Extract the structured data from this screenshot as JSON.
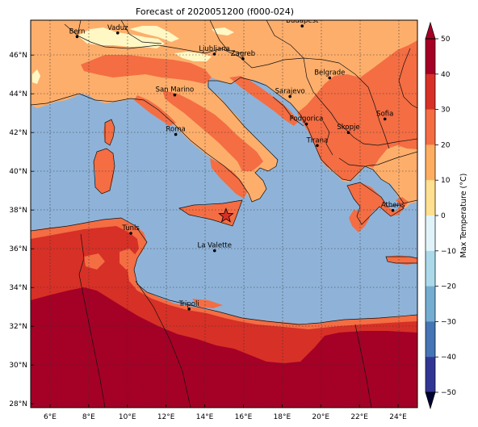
{
  "map": {
    "title": "Forecast of 2020051200 (f000-024)",
    "x_ticks": [
      "6°E",
      "8°E",
      "10°E",
      "12°E",
      "14°E",
      "16°E",
      "18°E",
      "20°E",
      "22°E",
      "24°E"
    ],
    "y_ticks": [
      "46°N",
      "44°N",
      "42°N",
      "40°N",
      "38°N",
      "36°N",
      "34°N",
      "32°N",
      "30°N",
      "28°N"
    ],
    "cities": [
      {
        "name": "Bern",
        "lon": 7.4,
        "lat": 46.95
      },
      {
        "name": "Vaduz",
        "lon": 9.5,
        "lat": 47.14
      },
      {
        "name": "Budapest",
        "lon": 19.04,
        "lat": 47.5
      },
      {
        "name": "Ljubljana",
        "lon": 14.5,
        "lat": 46.05
      },
      {
        "name": "Zagreb",
        "lon": 15.98,
        "lat": 45.81
      },
      {
        "name": "Belgrade",
        "lon": 20.46,
        "lat": 44.82
      },
      {
        "name": "San Marino",
        "lon": 12.45,
        "lat": 43.94
      },
      {
        "name": "Sarajevo",
        "lon": 18.41,
        "lat": 43.86
      },
      {
        "name": "Sofia",
        "lon": 23.32,
        "lat": 42.7
      },
      {
        "name": "Podgorica",
        "lon": 19.26,
        "lat": 42.44
      },
      {
        "name": "Skopje",
        "lon": 21.43,
        "lat": 42.0
      },
      {
        "name": "Roma",
        "lon": 12.5,
        "lat": 41.9
      },
      {
        "name": "Tirana",
        "lon": 19.82,
        "lat": 41.33
      },
      {
        "name": "Athens",
        "lon": 23.73,
        "lat": 37.98
      },
      {
        "name": "Tunis",
        "lon": 10.18,
        "lat": 36.8
      },
      {
        "name": "La Valette",
        "lon": 14.51,
        "lat": 35.9
      },
      {
        "name": "Tripoli",
        "lon": 13.19,
        "lat": 32.89
      }
    ],
    "marker": {
      "lon": 15.1,
      "lat": 37.7
    }
  },
  "colorbar": {
    "label": "Max Temperature (°C)",
    "ticks": [
      "50",
      "40",
      "30",
      "20",
      "10",
      "0",
      "−10",
      "−20",
      "−30",
      "−40",
      "−50"
    ],
    "colors": [
      "#a50026",
      "#d73027",
      "#f46d43",
      "#fdae61",
      "#fee090",
      "#e0f3f8",
      "#abd9e9",
      "#74add1",
      "#4575b4",
      "#313695"
    ]
  },
  "colors": {
    "sea": "#8fb3d8",
    "lt10": "#fff7c4",
    "t10_20": "#fdae6b",
    "t20_30": "#f46d43",
    "t30_40": "#d73027",
    "t40_50": "#a50026"
  }
}
